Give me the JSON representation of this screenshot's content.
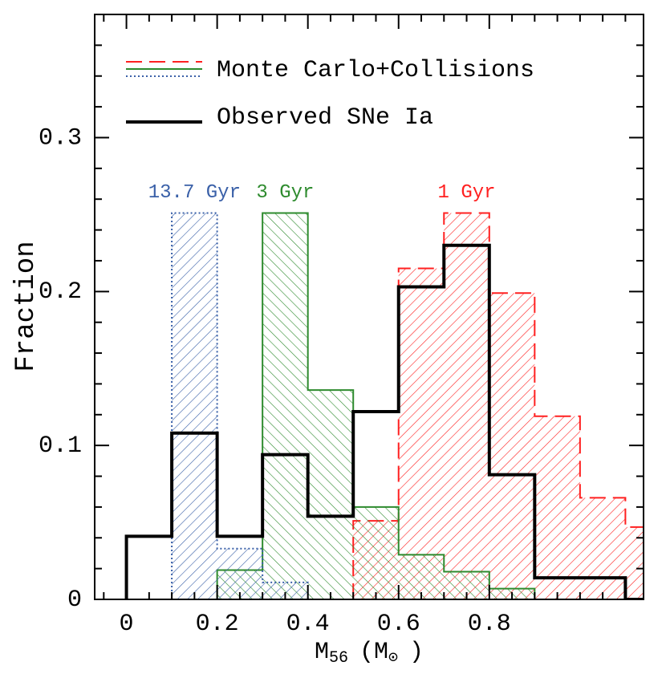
{
  "chart_data": {
    "type": "histogram",
    "xlabel": [
      "M",
      "56",
      "(M",
      "⊙",
      ")"
    ],
    "ylabel": "Fraction",
    "bins": [
      0,
      0.1,
      0.2,
      0.3,
      0.4,
      0.5,
      0.6,
      0.7,
      0.8,
      0.9,
      1.0,
      1.1,
      1.2
    ],
    "legend_label": "Monte Carlo+Collisions",
    "legend_position": "upper left",
    "series": [
      {
        "name": "1 Gyr",
        "color": "#ff2020",
        "linestyle": "dashed",
        "hatch": "/",
        "values": [
          null,
          null,
          null,
          null,
          null,
          0.051,
          0.215,
          0.251,
          0.199,
          0.119,
          0.066,
          0.047
        ]
      },
      {
        "name": "3 Gyr",
        "color": "#2e8b2e",
        "linestyle": "solid",
        "hatch": "\\",
        "values": [
          null,
          null,
          0.019,
          0.251,
          0.136,
          0.06,
          0.029,
          0.018,
          0.007,
          0,
          null,
          null
        ]
      },
      {
        "name": "13.7 Gyr",
        "color": "#3a60a8",
        "linestyle": "dotted",
        "hatch": "/",
        "values": [
          null,
          0.251,
          0.033,
          0.011,
          0,
          null,
          null,
          null,
          null,
          null,
          null,
          null
        ]
      },
      {
        "name": "Observed SNe Ia",
        "color": "#000000",
        "linestyle": "thick",
        "values": [
          0.041,
          0.108,
          0.041,
          0.094,
          0.054,
          0.122,
          0.203,
          0.23,
          0.081,
          0.014,
          0.014,
          0
        ]
      }
    ],
    "xlim": [
      -0.07,
      1.14
    ],
    "ylim": [
      0,
      0.38
    ],
    "xticks": [
      0,
      0.2,
      0.4,
      0.6,
      0.8
    ],
    "yticks": [
      0,
      0.1,
      0.2,
      0.3
    ],
    "xminorticks": [
      -0.05,
      0.05,
      0.1,
      0.15,
      0.25,
      0.3,
      0.35,
      0.45,
      0.5,
      0.55,
      0.65,
      0.7,
      0.75,
      0.85,
      0.9,
      0.95,
      1.0,
      1.05,
      1.1
    ],
    "yminorticks": [
      0.02,
      0.04,
      0.06,
      0.08,
      0.12,
      0.14,
      0.16,
      0.18,
      0.22,
      0.24,
      0.26,
      0.28,
      0.32,
      0.34,
      0.36
    ]
  }
}
